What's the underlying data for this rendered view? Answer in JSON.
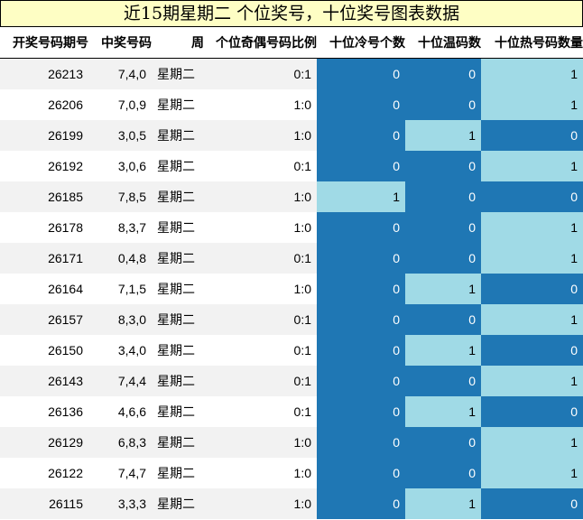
{
  "title": "近15期星期二 个位奖号，十位奖号图表数据",
  "colors": {
    "zero": "#1f77b4",
    "one": "#a0dae6",
    "title_bg": "#fefec4"
  },
  "columns": [
    "开奖号码期号",
    "中奖号码",
    "周",
    "个位奇偶号码比例",
    "十位冷号个数",
    "十位温码数",
    "十位热号码数量"
  ],
  "rows": [
    {
      "issue": "26213",
      "numbers": "7,4,0",
      "weekday": "星期二",
      "ratio": "0:1",
      "cold": 0,
      "warm": 0,
      "hot": 1
    },
    {
      "issue": "26206",
      "numbers": "7,0,9",
      "weekday": "星期二",
      "ratio": "1:0",
      "cold": 0,
      "warm": 0,
      "hot": 1
    },
    {
      "issue": "26199",
      "numbers": "3,0,5",
      "weekday": "星期二",
      "ratio": "1:0",
      "cold": 0,
      "warm": 1,
      "hot": 0
    },
    {
      "issue": "26192",
      "numbers": "3,0,6",
      "weekday": "星期二",
      "ratio": "0:1",
      "cold": 0,
      "warm": 0,
      "hot": 1
    },
    {
      "issue": "26185",
      "numbers": "7,8,5",
      "weekday": "星期二",
      "ratio": "1:0",
      "cold": 1,
      "warm": 0,
      "hot": 0
    },
    {
      "issue": "26178",
      "numbers": "8,3,7",
      "weekday": "星期二",
      "ratio": "1:0",
      "cold": 0,
      "warm": 0,
      "hot": 1
    },
    {
      "issue": "26171",
      "numbers": "0,4,8",
      "weekday": "星期二",
      "ratio": "0:1",
      "cold": 0,
      "warm": 0,
      "hot": 1
    },
    {
      "issue": "26164",
      "numbers": "7,1,5",
      "weekday": "星期二",
      "ratio": "1:0",
      "cold": 0,
      "warm": 1,
      "hot": 0
    },
    {
      "issue": "26157",
      "numbers": "8,3,0",
      "weekday": "星期二",
      "ratio": "0:1",
      "cold": 0,
      "warm": 0,
      "hot": 1
    },
    {
      "issue": "26150",
      "numbers": "3,4,0",
      "weekday": "星期二",
      "ratio": "0:1",
      "cold": 0,
      "warm": 1,
      "hot": 0
    },
    {
      "issue": "26143",
      "numbers": "7,4,4",
      "weekday": "星期二",
      "ratio": "0:1",
      "cold": 0,
      "warm": 0,
      "hot": 1
    },
    {
      "issue": "26136",
      "numbers": "4,6,6",
      "weekday": "星期二",
      "ratio": "0:1",
      "cold": 0,
      "warm": 1,
      "hot": 0
    },
    {
      "issue": "26129",
      "numbers": "6,8,3",
      "weekday": "星期二",
      "ratio": "1:0",
      "cold": 0,
      "warm": 0,
      "hot": 1
    },
    {
      "issue": "26122",
      "numbers": "7,4,7",
      "weekday": "星期二",
      "ratio": "1:0",
      "cold": 0,
      "warm": 0,
      "hot": 1
    },
    {
      "issue": "26115",
      "numbers": "3,3,3",
      "weekday": "星期二",
      "ratio": "1:0",
      "cold": 0,
      "warm": 1,
      "hot": 0
    }
  ]
}
